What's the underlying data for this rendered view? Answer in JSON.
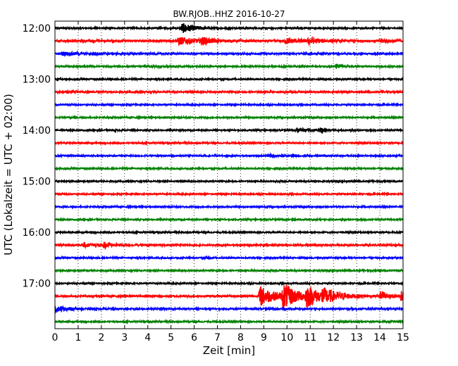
{
  "chart_data": {
    "type": "line",
    "title": "BW.RJOB..HHZ 2016-10-27",
    "xlabel": "Zeit  [min]",
    "ylabel": "UTC (Lokalzeit = UTC + 02:00)",
    "xlim": [
      0,
      15
    ],
    "x_ticks": [
      "0",
      "1",
      "2",
      "3",
      "4",
      "5",
      "6",
      "7",
      "8",
      "9",
      "10",
      "11",
      "12",
      "13",
      "14",
      "15"
    ],
    "y_ticks": [
      "12:00",
      "13:00",
      "14:00",
      "15:00",
      "16:00",
      "17:00"
    ],
    "grid": "vertical dotted",
    "colors": [
      "#000000",
      "#ff0000",
      "#0000ff",
      "#008000"
    ],
    "trace_interval_min": 15,
    "traces": [
      {
        "start": "12:00",
        "color": "#000000",
        "noise": 0.1,
        "events": [
          {
            "t": 5.45,
            "amp": 0.8,
            "dur": 1.2
          }
        ]
      },
      {
        "start": "12:15",
        "color": "#ff0000",
        "noise": 0.15,
        "events": [
          {
            "t": 5.3,
            "amp": 0.6,
            "dur": 1.6
          },
          {
            "t": 6.3,
            "amp": 0.5,
            "dur": 0.9
          },
          {
            "t": 9.9,
            "amp": 0.4,
            "dur": 1.4
          },
          {
            "t": 10.9,
            "amp": 0.45,
            "dur": 1.1
          },
          {
            "t": 14.0,
            "amp": 0.3,
            "dur": 0.9
          }
        ]
      },
      {
        "start": "12:30",
        "color": "#0000ff",
        "noise": 0.12,
        "events": [
          {
            "t": 0.3,
            "amp": 0.25,
            "dur": 1.5
          },
          {
            "t": 1.6,
            "amp": 0.2,
            "dur": 1.0
          }
        ]
      },
      {
        "start": "12:45",
        "color": "#008000",
        "noise": 0.1,
        "events": [
          {
            "t": 4.0,
            "amp": 0.12,
            "dur": 1.5
          },
          {
            "t": 12.1,
            "amp": 0.35,
            "dur": 0.6
          }
        ]
      },
      {
        "start": "13:00",
        "color": "#000000",
        "noise": 0.1,
        "events": []
      },
      {
        "start": "13:15",
        "color": "#ff0000",
        "noise": 0.12,
        "events": [
          {
            "t": 0.5,
            "amp": 0.2,
            "dur": 0.6
          }
        ]
      },
      {
        "start": "13:30",
        "color": "#0000ff",
        "noise": 0.1,
        "events": []
      },
      {
        "start": "13:45",
        "color": "#008000",
        "noise": 0.1,
        "events": [
          {
            "t": 0.6,
            "amp": 0.12,
            "dur": 0.5
          }
        ]
      },
      {
        "start": "14:00",
        "color": "#000000",
        "noise": 0.1,
        "events": [
          {
            "t": 2.5,
            "amp": 0.15,
            "dur": 0.3
          },
          {
            "t": 10.4,
            "amp": 0.3,
            "dur": 1.0
          },
          {
            "t": 11.4,
            "amp": 0.45,
            "dur": 0.7
          }
        ]
      },
      {
        "start": "14:15",
        "color": "#ff0000",
        "noise": 0.1,
        "events": []
      },
      {
        "start": "14:30",
        "color": "#0000ff",
        "noise": 0.1,
        "events": [
          {
            "t": 9.2,
            "amp": 0.25,
            "dur": 0.6
          },
          {
            "t": 10.2,
            "amp": 0.25,
            "dur": 0.5
          }
        ]
      },
      {
        "start": "14:45",
        "color": "#008000",
        "noise": 0.1,
        "events": []
      },
      {
        "start": "15:00",
        "color": "#000000",
        "noise": 0.1,
        "events": []
      },
      {
        "start": "15:15",
        "color": "#ff0000",
        "noise": 0.1,
        "events": []
      },
      {
        "start": "15:30",
        "color": "#0000ff",
        "noise": 0.1,
        "events": []
      },
      {
        "start": "15:45",
        "color": "#008000",
        "noise": 0.1,
        "events": []
      },
      {
        "start": "16:00",
        "color": "#000000",
        "noise": 0.1,
        "events": []
      },
      {
        "start": "16:15",
        "color": "#ff0000",
        "noise": 0.12,
        "events": [
          {
            "t": 1.2,
            "amp": 0.35,
            "dur": 0.9
          },
          {
            "t": 2.1,
            "amp": 0.55,
            "dur": 0.6
          }
        ]
      },
      {
        "start": "16:30",
        "color": "#0000ff",
        "noise": 0.1,
        "events": [
          {
            "t": 6.5,
            "amp": 0.12,
            "dur": 0.3
          }
        ]
      },
      {
        "start": "16:45",
        "color": "#008000",
        "noise": 0.1,
        "events": []
      },
      {
        "start": "17:00",
        "color": "#000000",
        "noise": 0.1,
        "events": []
      },
      {
        "start": "17:15",
        "color": "#ff0000",
        "noise": 0.12,
        "events": [
          {
            "t": 8.8,
            "amp": 1.7,
            "dur": 1.4
          },
          {
            "t": 9.8,
            "amp": 1.9,
            "dur": 1.4
          },
          {
            "t": 10.8,
            "amp": 1.5,
            "dur": 1.3
          },
          {
            "t": 11.5,
            "amp": 0.9,
            "dur": 1.8
          },
          {
            "t": 14.0,
            "amp": 0.75,
            "dur": 0.8
          },
          {
            "t": 14.9,
            "amp": 0.9,
            "dur": 0.3
          }
        ]
      },
      {
        "start": "17:30",
        "color": "#0000ff",
        "noise": 0.12,
        "events": [
          {
            "t": 0.0,
            "amp": 0.4,
            "dur": 1.3
          }
        ]
      },
      {
        "start": "17:45",
        "color": "#008000",
        "noise": 0.1,
        "events": [
          {
            "t": 14.2,
            "amp": 0.12,
            "dur": 0.5
          }
        ]
      }
    ]
  }
}
